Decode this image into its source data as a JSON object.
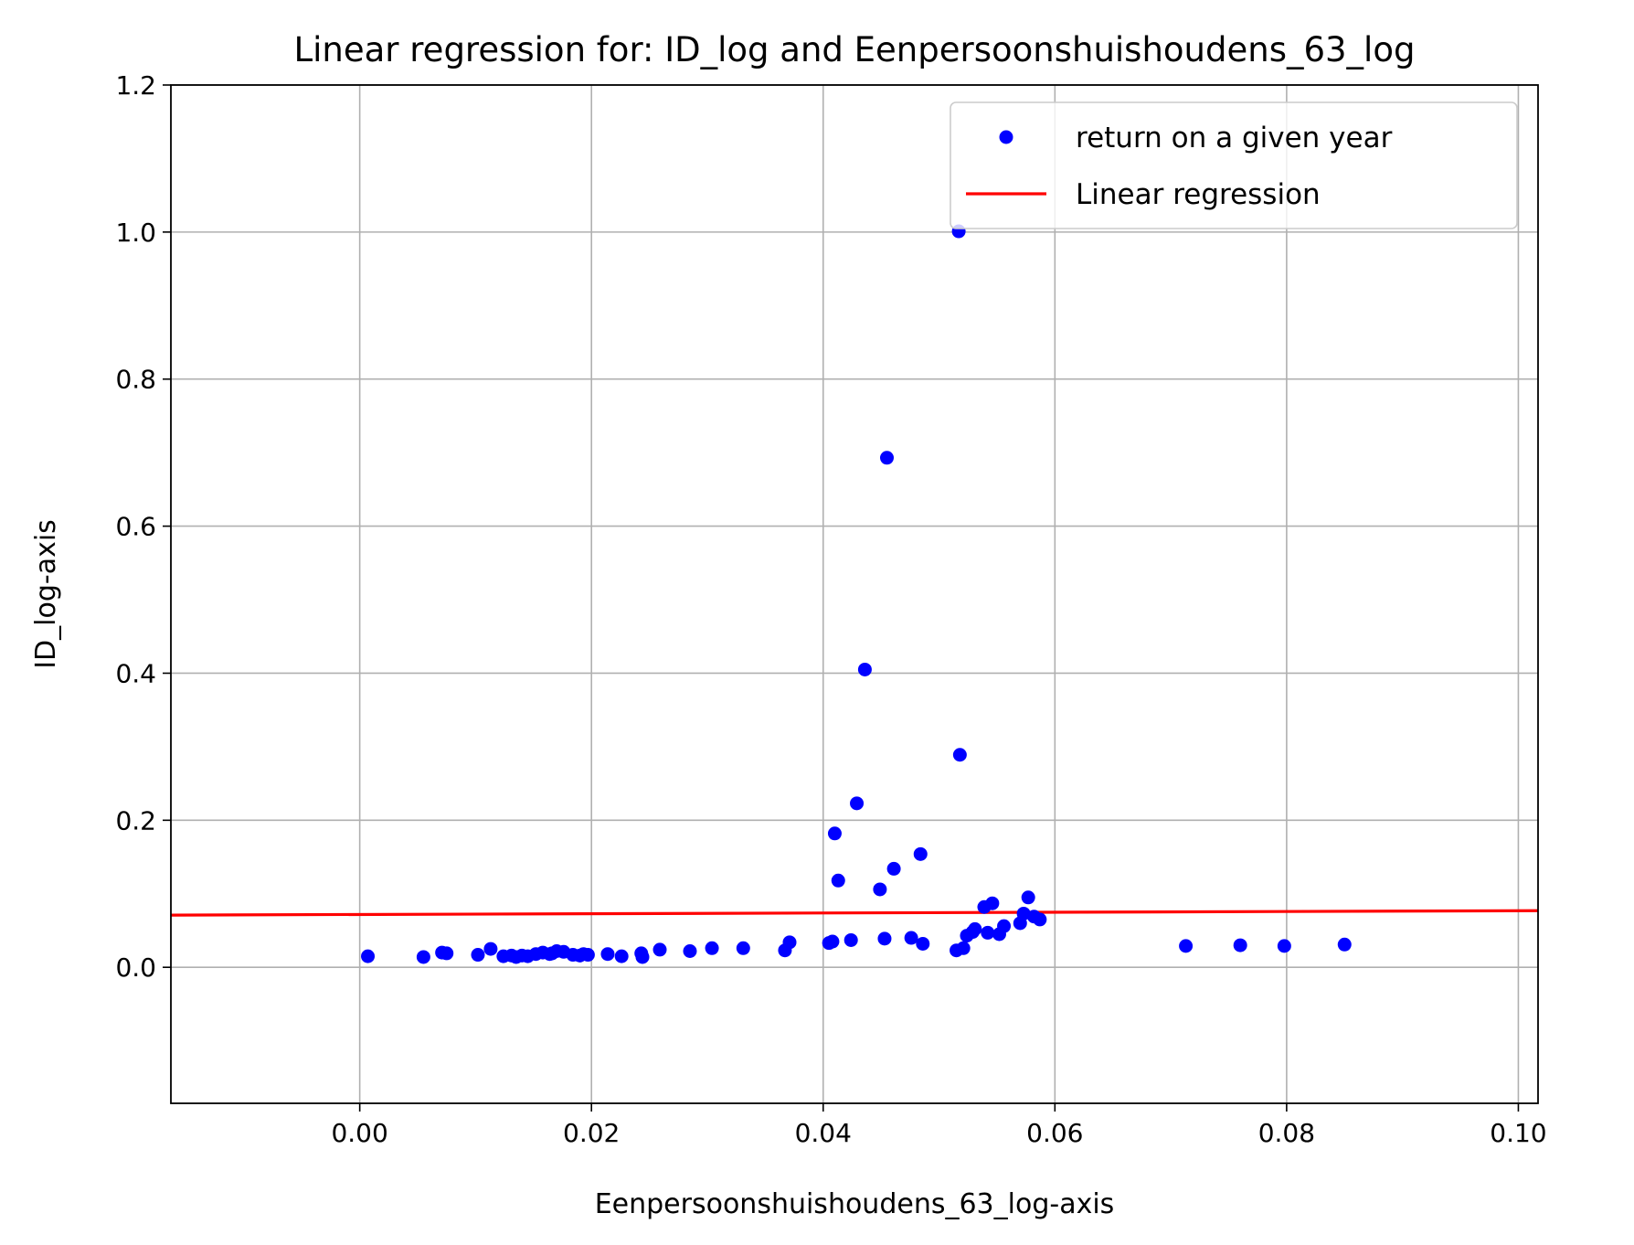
{
  "chart_data": {
    "type": "scatter",
    "title": "Linear regression for: ID_log and Eenpersoonshuishoudens_63_log",
    "xlabel": "Eenpersoonshuishoudens_63_log-axis",
    "ylabel": "ID_log-axis",
    "xlim": [
      -0.0163,
      0.1017
    ],
    "ylim": [
      -0.185,
      1.2
    ],
    "x_ticks": [
      0.0,
      0.02,
      0.04,
      0.06,
      0.08,
      0.1
    ],
    "x_tick_labels": [
      "0.00",
      "0.02",
      "0.04",
      "0.06",
      "0.08",
      "0.10"
    ],
    "y_ticks": [
      0.0,
      0.2,
      0.4,
      0.6,
      0.8,
      1.0,
      1.2
    ],
    "y_tick_labels": [
      "0.0",
      "0.2",
      "0.4",
      "0.6",
      "0.8",
      "1.0",
      "1.2"
    ],
    "grid": true,
    "legend_position": "top-right",
    "series": [
      {
        "name": "return on a given year",
        "kind": "scatter",
        "color": "#0000ff",
        "points": [
          [
            0.0007,
            0.015
          ],
          [
            0.0055,
            0.014
          ],
          [
            0.0071,
            0.02
          ],
          [
            0.0075,
            0.019
          ],
          [
            0.0102,
            0.017
          ],
          [
            0.0113,
            0.025
          ],
          [
            0.0124,
            0.015
          ],
          [
            0.0131,
            0.016
          ],
          [
            0.0135,
            0.014
          ],
          [
            0.014,
            0.016
          ],
          [
            0.0145,
            0.015
          ],
          [
            0.0152,
            0.018
          ],
          [
            0.0158,
            0.02
          ],
          [
            0.0164,
            0.018
          ],
          [
            0.0166,
            0.019
          ],
          [
            0.017,
            0.022
          ],
          [
            0.0176,
            0.021
          ],
          [
            0.0184,
            0.017
          ],
          [
            0.019,
            0.016
          ],
          [
            0.0193,
            0.018
          ],
          [
            0.0197,
            0.017
          ],
          [
            0.0214,
            0.018
          ],
          [
            0.0226,
            0.015
          ],
          [
            0.0243,
            0.019
          ],
          [
            0.0244,
            0.014
          ],
          [
            0.0259,
            0.024
          ],
          [
            0.0285,
            0.022
          ],
          [
            0.0304,
            0.026
          ],
          [
            0.0331,
            0.026
          ],
          [
            0.0367,
            0.023
          ],
          [
            0.0371,
            0.034
          ],
          [
            0.0405,
            0.033
          ],
          [
            0.0408,
            0.035
          ],
          [
            0.041,
            0.182
          ],
          [
            0.0413,
            0.118
          ],
          [
            0.0424,
            0.037
          ],
          [
            0.0429,
            0.223
          ],
          [
            0.0436,
            0.405
          ],
          [
            0.0449,
            0.106
          ],
          [
            0.0453,
            0.039
          ],
          [
            0.0455,
            0.693
          ],
          [
            0.0461,
            0.134
          ],
          [
            0.0476,
            0.04
          ],
          [
            0.0484,
            0.154
          ],
          [
            0.0486,
            0.032
          ],
          [
            0.0515,
            0.023
          ],
          [
            0.0517,
            1.001
          ],
          [
            0.0518,
            0.289
          ],
          [
            0.0521,
            0.026
          ],
          [
            0.0524,
            0.043
          ],
          [
            0.0529,
            0.048
          ],
          [
            0.0531,
            0.052
          ],
          [
            0.0539,
            0.082
          ],
          [
            0.0542,
            0.047
          ],
          [
            0.0546,
            0.087
          ],
          [
            0.0552,
            0.045
          ],
          [
            0.0556,
            0.056
          ],
          [
            0.057,
            0.06
          ],
          [
            0.0573,
            0.073
          ],
          [
            0.0577,
            0.095
          ],
          [
            0.0582,
            0.069
          ],
          [
            0.0587,
            0.065
          ],
          [
            0.0713,
            0.029
          ],
          [
            0.076,
            0.03
          ],
          [
            0.0798,
            0.029
          ],
          [
            0.085,
            0.031
          ]
        ]
      },
      {
        "name": "Linear regression",
        "kind": "line",
        "color": "#ff0000",
        "x": [
          -0.0163,
          0.1017
        ],
        "y": [
          0.071,
          0.077
        ]
      }
    ]
  }
}
